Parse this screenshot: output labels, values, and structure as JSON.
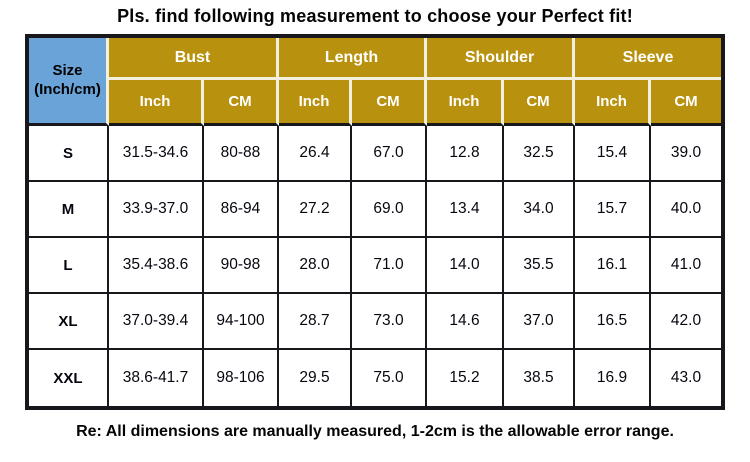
{
  "title": "Pls. find following measurement to choose your Perfect fit!",
  "footer_note": "Re: All dimensions are manually measured, 1-2cm is the allowable error range.",
  "colors": {
    "header_gold": "#B8920E",
    "size_corner_blue": "#69A3D8",
    "header_separator_cream": "#F2EFDE",
    "table_border": "#17171c",
    "header_text": "#FFFFFF",
    "body_text": "#000000"
  },
  "chart_data": {
    "type": "table",
    "corner": {
      "line1": "Size",
      "line2": "(Inch/cm)"
    },
    "groups": [
      "Bust",
      "Length",
      "Shoulder",
      "Sleeve"
    ],
    "unit_headers": [
      "Inch",
      "CM",
      "Inch",
      "CM",
      "Inch",
      "CM",
      "Inch",
      "CM"
    ],
    "rows": [
      {
        "size": "S",
        "values": [
          "31.5-34.6",
          "80-88",
          "26.4",
          "67.0",
          "12.8",
          "32.5",
          "15.4",
          "39.0"
        ]
      },
      {
        "size": "M",
        "values": [
          "33.9-37.0",
          "86-94",
          "27.2",
          "69.0",
          "13.4",
          "34.0",
          "15.7",
          "40.0"
        ]
      },
      {
        "size": "L",
        "values": [
          "35.4-38.6",
          "90-98",
          "28.0",
          "71.0",
          "14.0",
          "35.5",
          "16.1",
          "41.0"
        ]
      },
      {
        "size": "XL",
        "values": [
          "37.0-39.4",
          "94-100",
          "28.7",
          "73.0",
          "14.6",
          "37.0",
          "16.5",
          "42.0"
        ]
      },
      {
        "size": "XXL",
        "values": [
          "38.6-41.7",
          "98-106",
          "29.5",
          "75.0",
          "15.2",
          "38.5",
          "16.9",
          "43.0"
        ]
      }
    ]
  }
}
